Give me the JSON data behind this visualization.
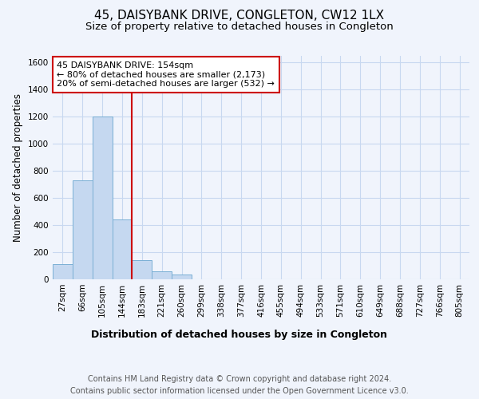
{
  "title": "45, DAISYBANK DRIVE, CONGLETON, CW12 1LX",
  "subtitle": "Size of property relative to detached houses in Congleton",
  "xlabel": "Distribution of detached houses by size in Congleton",
  "ylabel": "Number of detached properties",
  "categories": [
    "27sqm",
    "66sqm",
    "105sqm",
    "144sqm",
    "183sqm",
    "221sqm",
    "260sqm",
    "299sqm",
    "338sqm",
    "377sqm",
    "416sqm",
    "455sqm",
    "494sqm",
    "533sqm",
    "571sqm",
    "610sqm",
    "649sqm",
    "688sqm",
    "727sqm",
    "766sqm",
    "805sqm"
  ],
  "values": [
    110,
    730,
    1200,
    440,
    140,
    60,
    35,
    0,
    0,
    0,
    0,
    0,
    0,
    0,
    0,
    0,
    0,
    0,
    0,
    0,
    0
  ],
  "bar_color": "#c5d8f0",
  "bar_edge_color": "#7aafd4",
  "bar_width": 1.0,
  "vline_x": 3.5,
  "vline_color": "#cc0000",
  "annotation_text": "45 DAISYBANK DRIVE: 154sqm\n← 80% of detached houses are smaller (2,173)\n20% of semi-detached houses are larger (532) →",
  "annotation_box_color": "white",
  "annotation_box_edge_color": "#cc0000",
  "ylim": [
    0,
    1650
  ],
  "yticks": [
    0,
    200,
    400,
    600,
    800,
    1000,
    1200,
    1400,
    1600
  ],
  "background_color": "#f0f4fc",
  "grid_color": "#c8d8f0",
  "footer_text": "Contains HM Land Registry data © Crown copyright and database right 2024.\nContains public sector information licensed under the Open Government Licence v3.0.",
  "title_fontsize": 11,
  "subtitle_fontsize": 9.5,
  "xlabel_fontsize": 9,
  "ylabel_fontsize": 8.5,
  "tick_fontsize": 7.5,
  "footer_fontsize": 7,
  "annot_fontsize": 8
}
